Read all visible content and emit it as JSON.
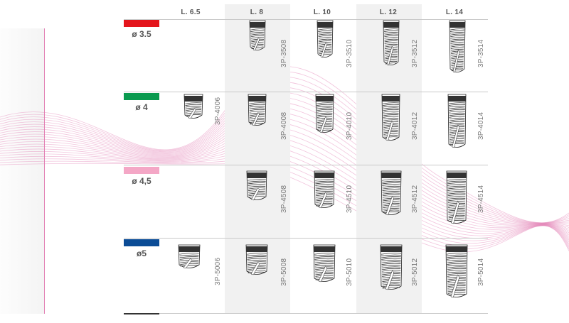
{
  "columns": [
    {
      "label": "L. 6.5"
    },
    {
      "label": "L. 8"
    },
    {
      "label": "L. 10"
    },
    {
      "label": "L. 12"
    },
    {
      "label": "L. 14"
    }
  ],
  "rows": [
    {
      "diameter": "ø 3.5",
      "color": "#e4151c",
      "codes": [
        "",
        "3P-3508",
        "3P-3510",
        "3P-3512",
        "3P-3514"
      ]
    },
    {
      "diameter": "ø 4",
      "color": "#0a9a4f",
      "codes": [
        "3P-4006",
        "3P-4008",
        "3P-4010",
        "3P-4012",
        "3P-4014"
      ]
    },
    {
      "diameter": "ø 4,5",
      "color": "#f4a7c6",
      "codes": [
        "",
        "3P-4508",
        "3P-4510",
        "3P-4512",
        "3P-4514"
      ]
    },
    {
      "diameter": "ø5",
      "color": "#0b4c96",
      "codes": [
        "3P-5006",
        "3P-5008",
        "3P-5010",
        "3P-5012",
        "3P-5014"
      ]
    }
  ],
  "accent_color": "#e27fb3",
  "icon": "dental-implant-icon"
}
